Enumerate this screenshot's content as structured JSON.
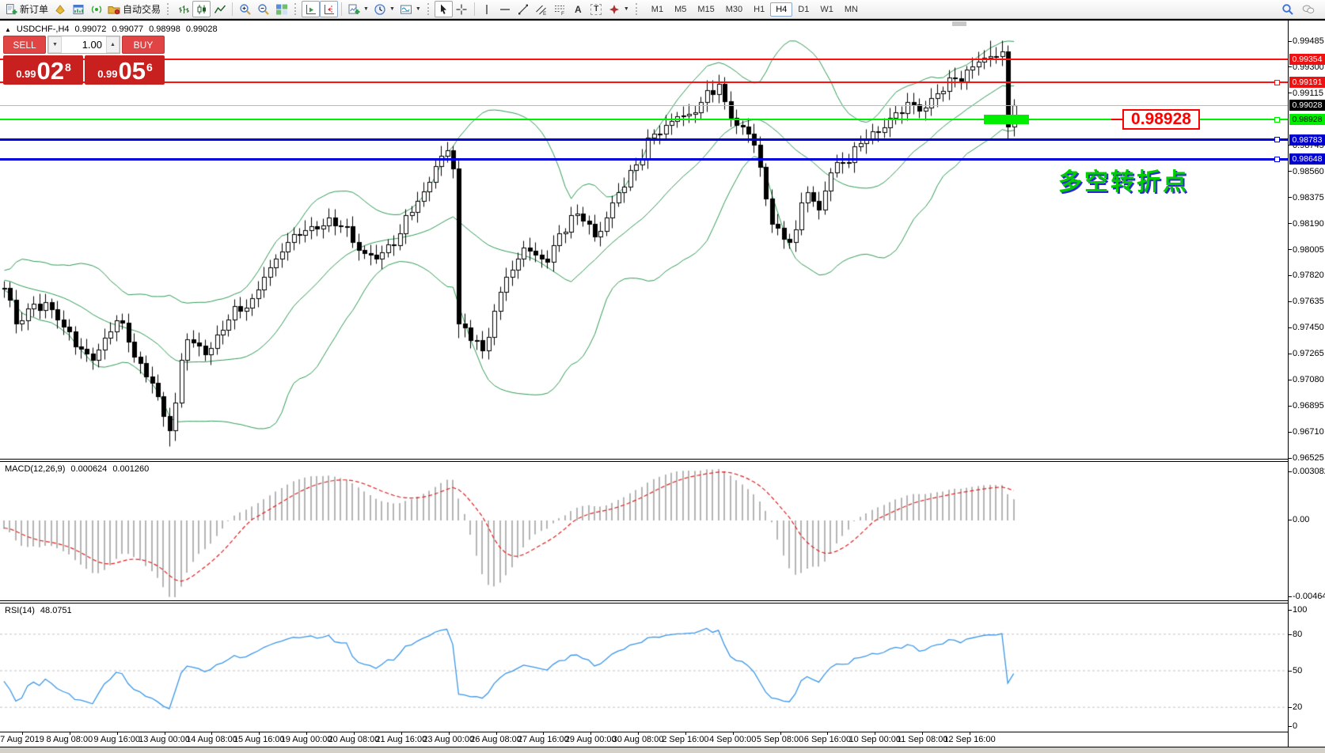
{
  "toolbar": {
    "new_order": "新订单",
    "autotrading": "自动交易",
    "caret": "▼",
    "text_tool": "A",
    "text_label_tool": "T",
    "timeframes": [
      "M1",
      "M5",
      "M15",
      "M30",
      "H1",
      "H4",
      "D1",
      "W1",
      "MN"
    ],
    "active_timeframe": "H4"
  },
  "title": {
    "collapse": "▲",
    "symbol": "USDCHF-,H4",
    "open": "0.99072",
    "high": "0.99077",
    "low": "0.98998",
    "close": "0.99028"
  },
  "one_click": {
    "sell": "SELL",
    "buy": "BUY",
    "volume": "1.00",
    "spin_down": "▼",
    "spin_up": "▲",
    "sell_small": "0.99",
    "sell_big": "02",
    "sell_sup": "8",
    "buy_small": "0.99",
    "buy_big": "05",
    "buy_sup": "6"
  },
  "indicators": {
    "macd": {
      "name": "MACD(12,26,9)",
      "main": "0.000624",
      "signal": "0.001260",
      "axis": [
        "0.003082",
        "0.00",
        "-0.004641"
      ]
    },
    "rsi": {
      "name": "RSI(14)",
      "value": "48.0751",
      "axis": [
        "100",
        "80",
        "50",
        "20",
        "0"
      ]
    }
  },
  "price_axis": {
    "ticks": [
      "0.99485",
      "0.99300",
      "0.99115",
      "0.98745",
      "0.98560",
      "0.98375",
      "0.98190",
      "0.98005",
      "0.97820",
      "0.97635",
      "0.97450",
      "0.97265",
      "0.97080",
      "0.96895",
      "0.96710",
      "0.96525"
    ],
    "line_labels": [
      {
        "value": "0.99354",
        "bg": "#ee1111",
        "fg": "#ffffff"
      },
      {
        "value": "0.99191",
        "bg": "#ee1111",
        "fg": "#ffffff"
      },
      {
        "value": "0.98928",
        "bg": "#00ee00",
        "fg": "#000000"
      },
      {
        "value": "0.98783",
        "bg": "#0000cc",
        "fg": "#ffffff"
      },
      {
        "value": "0.98648",
        "bg": "#0000cc",
        "fg": "#ffffff"
      }
    ],
    "current": {
      "value": "0.99028",
      "bg": "#000000",
      "fg": "#ffffff"
    }
  },
  "annotations": {
    "level_label": "0.98928",
    "turning_point_text": "多空转折点"
  },
  "chart_data": {
    "type": "candlestick",
    "symbol": "USDCHF",
    "timeframe": "H4",
    "title": "USDCHF-,H4",
    "ohlc_readout": {
      "open": 0.99072,
      "high": 0.99077,
      "low": 0.98998,
      "close": 0.99028
    },
    "ylim": [
      0.96525,
      0.99485
    ],
    "price_tick_step": 0.00185,
    "bars_visible": 172,
    "price_path_anchors": [
      [
        -40,
        0.9792
      ],
      [
        -34,
        0.978
      ],
      [
        -28,
        0.9786
      ],
      [
        -22,
        0.9778
      ],
      [
        -16,
        0.9784
      ],
      [
        -10,
        0.9776
      ],
      [
        -5,
        0.978
      ],
      [
        0,
        0.9773
      ],
      [
        2,
        0.9748
      ],
      [
        5,
        0.9762
      ],
      [
        8,
        0.9758
      ],
      [
        10,
        0.9746
      ],
      [
        13,
        0.973
      ],
      [
        15,
        0.9722
      ],
      [
        17,
        0.9738
      ],
      [
        19,
        0.975
      ],
      [
        21,
        0.9735
      ],
      [
        23,
        0.972
      ],
      [
        25,
        0.9706
      ],
      [
        27,
        0.9682
      ],
      [
        28,
        0.9672
      ],
      [
        29,
        0.9692
      ],
      [
        30,
        0.9722
      ],
      [
        31,
        0.9737
      ],
      [
        33,
        0.9732
      ],
      [
        34,
        0.9726
      ],
      [
        36,
        0.974
      ],
      [
        38,
        0.9751
      ],
      [
        40,
        0.9757
      ],
      [
        42,
        0.9766
      ],
      [
        44,
        0.9781
      ],
      [
        47,
        0.9799
      ],
      [
        50,
        0.9811
      ],
      [
        52,
        0.9817
      ],
      [
        55,
        0.9823
      ],
      [
        57,
        0.9817
      ],
      [
        59,
        0.9806
      ],
      [
        61,
        0.9798
      ],
      [
        63,
        0.9794
      ],
      [
        65,
        0.9804
      ],
      [
        67,
        0.9812
      ],
      [
        69,
        0.9827
      ],
      [
        71,
        0.9842
      ],
      [
        73,
        0.986
      ],
      [
        75,
        0.9871
      ],
      [
        76,
        0.9858
      ],
      [
        77,
        0.9748
      ],
      [
        79,
        0.9736
      ],
      [
        81,
        0.9729
      ],
      [
        83,
        0.9757
      ],
      [
        85,
        0.9781
      ],
      [
        87,
        0.9794
      ],
      [
        88,
        0.9802
      ],
      [
        90,
        0.9797
      ],
      [
        92,
        0.9792
      ],
      [
        94,
        0.9812
      ],
      [
        96,
        0.9825
      ],
      [
        98,
        0.9821
      ],
      [
        100,
        0.981
      ],
      [
        102,
        0.9823
      ],
      [
        104,
        0.9841
      ],
      [
        106,
        0.9857
      ],
      [
        108,
        0.9865
      ],
      [
        110,
        0.9883
      ],
      [
        112,
        0.9889
      ],
      [
        114,
        0.9895
      ],
      [
        116,
        0.9897
      ],
      [
        118,
        0.9905
      ],
      [
        120,
        0.9911
      ],
      [
        121,
        0.9918
      ],
      [
        122,
        0.9906
      ],
      [
        124,
        0.9889
      ],
      [
        126,
        0.9883
      ],
      [
        127,
        0.9875
      ],
      [
        128,
        0.9859
      ],
      [
        129,
        0.9837
      ],
      [
        130,
        0.9819
      ],
      [
        132,
        0.9808
      ],
      [
        134,
        0.9815
      ],
      [
        135,
        0.9834
      ],
      [
        136,
        0.9841
      ],
      [
        138,
        0.9829
      ],
      [
        140,
        0.9855
      ],
      [
        142,
        0.9862
      ],
      [
        144,
        0.9874
      ],
      [
        146,
        0.9879
      ],
      [
        148,
        0.9884
      ],
      [
        150,
        0.9894
      ],
      [
        151,
        0.9898
      ],
      [
        153,
        0.9905
      ],
      [
        155,
        0.9899
      ],
      [
        157,
        0.9908
      ],
      [
        159,
        0.9913
      ],
      [
        161,
        0.9922
      ],
      [
        163,
        0.9928
      ],
      [
        165,
        0.9934
      ],
      [
        167,
        0.9938
      ],
      [
        169,
        0.9941
      ],
      [
        170,
        0.9888
      ],
      [
        171,
        0.99028
      ]
    ],
    "bollinger": {
      "period": 20,
      "deviation": 2,
      "color": "#2e9955"
    },
    "current_price": 0.99028,
    "hlines": [
      {
        "price": 0.99354,
        "color": "#ff1111",
        "width": 2,
        "marker": false
      },
      {
        "price": 0.99191,
        "color": "#ff1111",
        "width": 2,
        "marker": true
      },
      {
        "price": 0.98928,
        "color": "#00ef00",
        "width": 2,
        "marker": true
      },
      {
        "price": 0.98783,
        "color": "#0000dd",
        "width": 3,
        "marker": true
      },
      {
        "price": 0.98648,
        "color": "#0000dd",
        "width": 3,
        "marker": true
      }
    ],
    "macd": {
      "fast": 12,
      "slow": 26,
      "signal_period": 9,
      "last_main": 0.000624,
      "last_signal": 0.00126,
      "axis_max": 0.003082,
      "axis_min": -0.004641,
      "hist_color": "#b4b4b4",
      "signal_color": "#e02020"
    },
    "rsi": {
      "period": 14,
      "last": 48.0751,
      "ylim": [
        0,
        100
      ],
      "levels": [
        80,
        50,
        20
      ],
      "color": "#3a96e8"
    },
    "time_labels": [
      "7 Aug 2019",
      "8 Aug 08:00",
      "9 Aug 16:00",
      "13 Aug 00:00",
      "14 Aug 08:00",
      "15 Aug 16:00",
      "19 Aug 00:00",
      "20 Aug 08:00",
      "21 Aug 16:00",
      "23 Aug 00:00",
      "26 Aug 08:00",
      "27 Aug 16:00",
      "29 Aug 00:00",
      "30 Aug 08:00",
      "2 Sep 16:00",
      "4 Sep 00:00",
      "5 Sep 08:00",
      "6 Sep 16:00",
      "10 Sep 00:00",
      "11 Sep 08:00",
      "12 Sep 16:00"
    ]
  }
}
